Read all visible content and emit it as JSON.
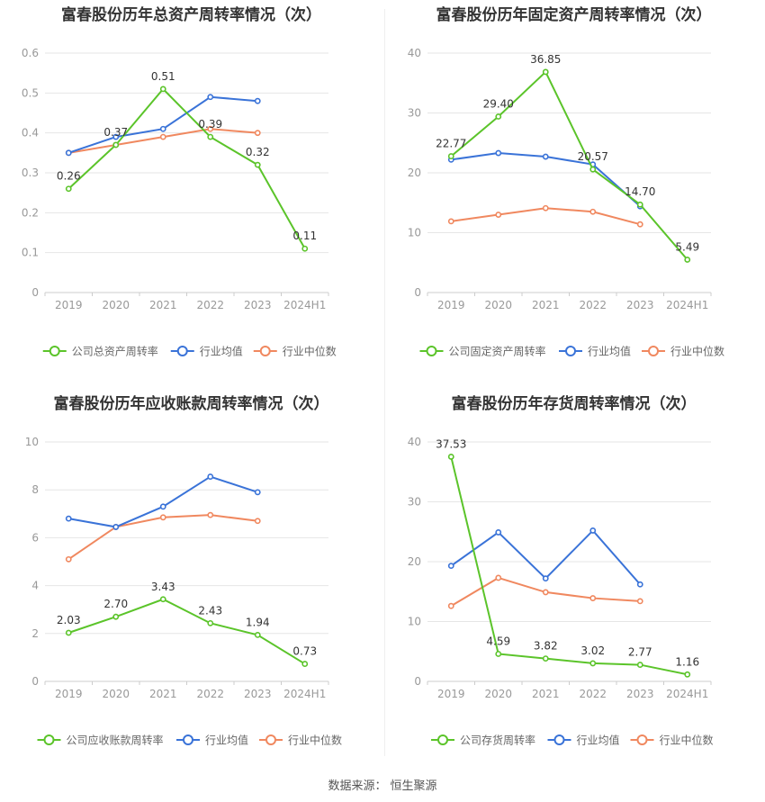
{
  "source": {
    "label": "数据来源：",
    "value": "恒生聚源"
  },
  "legend_labels": [
    "行业均值",
    "行业中位数"
  ],
  "colors": {
    "company": "#5bc42a",
    "industry_avg": "#3a73d8",
    "industry_median": "#f0885f",
    "grid": "#e6e6e6",
    "axis_text": "#999999"
  },
  "chart_data": [
    {
      "type": "line",
      "title": "富春股份历年总资产周转率情况（次）",
      "categories": [
        "2019",
        "2020",
        "2021",
        "2022",
        "2023",
        "2024H1"
      ],
      "ylim": [
        0,
        0.6
      ],
      "yticks": [
        "0",
        "0.1",
        "0.2",
        "0.3",
        "0.4",
        "0.5",
        "0.6"
      ],
      "series": [
        {
          "name": "公司总资产周转率",
          "values": [
            0.26,
            0.37,
            0.51,
            0.39,
            0.32,
            0.11
          ],
          "labels": [
            "0.26",
            "0.37",
            "0.51",
            "0.39",
            "0.32",
            "0.11"
          ]
        },
        {
          "name": "行业均值",
          "values": [
            0.35,
            0.39,
            0.41,
            0.49,
            0.48,
            null
          ]
        },
        {
          "name": "行业中位数",
          "values": [
            0.35,
            0.37,
            0.39,
            0.41,
            0.4,
            null
          ]
        }
      ]
    },
    {
      "type": "line",
      "title": "富春股份历年固定资产周转率情况（次）",
      "categories": [
        "2019",
        "2020",
        "2021",
        "2022",
        "2023",
        "2024H1"
      ],
      "ylim": [
        0,
        40
      ],
      "yticks": [
        "0",
        "10",
        "20",
        "30",
        "40"
      ],
      "series": [
        {
          "name": "公司固定资产周转率",
          "values": [
            22.77,
            29.4,
            36.85,
            20.57,
            14.7,
            5.49
          ],
          "labels": [
            "22.77",
            "29.40",
            "36.85",
            "20.57",
            "14.70",
            "5.49"
          ]
        },
        {
          "name": "行业均值",
          "values": [
            22.2,
            23.3,
            22.7,
            21.4,
            14.4,
            null
          ]
        },
        {
          "name": "行业中位数",
          "values": [
            11.9,
            13.0,
            14.1,
            13.5,
            11.4,
            null
          ]
        }
      ]
    },
    {
      "type": "line",
      "title": "富春股份历年应收账款周转率情况（次）",
      "categories": [
        "2019",
        "2020",
        "2021",
        "2022",
        "2023",
        "2024H1"
      ],
      "ylim": [
        0,
        10
      ],
      "yticks": [
        "0",
        "2",
        "4",
        "6",
        "8",
        "10"
      ],
      "series": [
        {
          "name": "公司应收账款周转率",
          "values": [
            2.03,
            2.7,
            3.43,
            2.43,
            1.94,
            0.73
          ],
          "labels": [
            "2.03",
            "2.70",
            "3.43",
            "2.43",
            "1.94",
            "0.73"
          ]
        },
        {
          "name": "行业均值",
          "values": [
            6.8,
            6.45,
            7.3,
            8.55,
            7.9,
            null
          ]
        },
        {
          "name": "行业中位数",
          "values": [
            5.1,
            6.45,
            6.85,
            6.95,
            6.7,
            null
          ]
        }
      ]
    },
    {
      "type": "line",
      "title": "富春股份历年存货周转率情况（次）",
      "categories": [
        "2019",
        "2020",
        "2021",
        "2022",
        "2023",
        "2024H1"
      ],
      "ylim": [
        0,
        40
      ],
      "yticks": [
        "0",
        "10",
        "20",
        "30",
        "40"
      ],
      "series": [
        {
          "name": "公司存货周转率",
          "values": [
            37.53,
            4.59,
            3.82,
            3.02,
            2.77,
            1.16
          ],
          "labels": [
            "37.53",
            "4.59",
            "3.82",
            "3.02",
            "2.77",
            "1.16"
          ]
        },
        {
          "name": "行业均值",
          "values": [
            19.3,
            24.9,
            17.2,
            25.2,
            16.2,
            null
          ]
        },
        {
          "name": "行业中位数",
          "values": [
            12.6,
            17.3,
            14.9,
            13.9,
            13.4,
            null
          ]
        }
      ]
    }
  ]
}
